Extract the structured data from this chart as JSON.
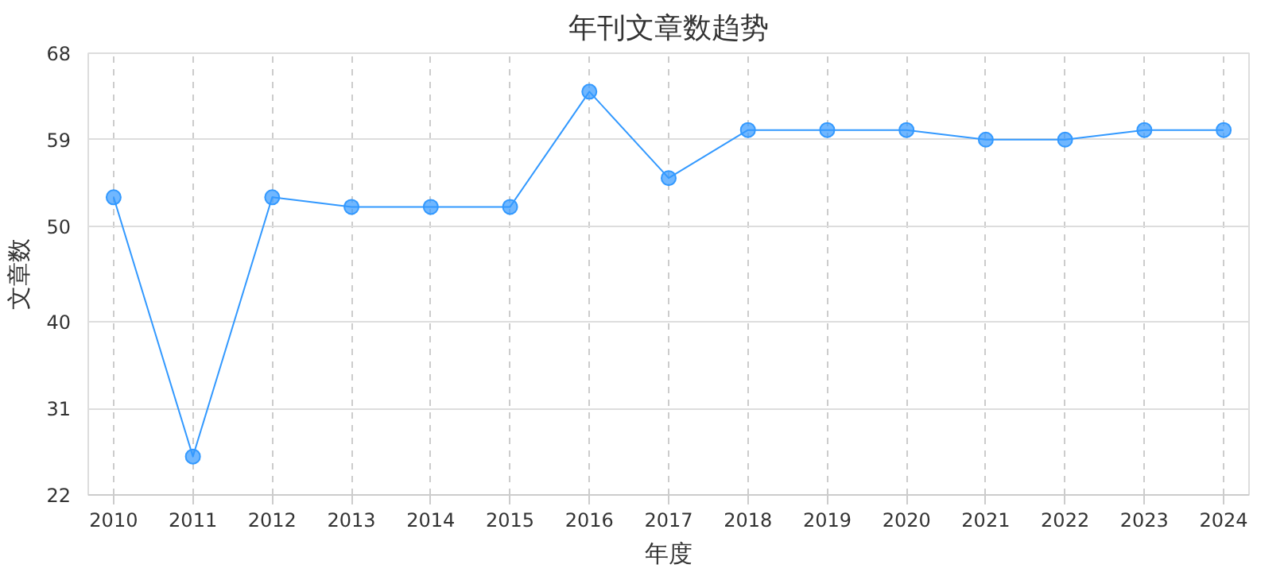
{
  "chart_data": {
    "type": "line",
    "title": "年刊文章数趋势",
    "xlabel": "年度",
    "ylabel": "文章数",
    "categories": [
      "2010",
      "2011",
      "2012",
      "2013",
      "2014",
      "2015",
      "2016",
      "2017",
      "2018",
      "2019",
      "2020",
      "2021",
      "2022",
      "2023",
      "2024"
    ],
    "series": [
      {
        "color": "#3399ff",
        "values": [
          53,
          26,
          53,
          52,
          52,
          52,
          64,
          55,
          60,
          60,
          60,
          59,
          59,
          60,
          60
        ]
      }
    ],
    "ylim": [
      22,
      68
    ],
    "yticks": [
      22,
      31,
      40,
      50,
      59,
      68
    ],
    "grid": true,
    "marker": "circle",
    "line_style": "solid"
  }
}
